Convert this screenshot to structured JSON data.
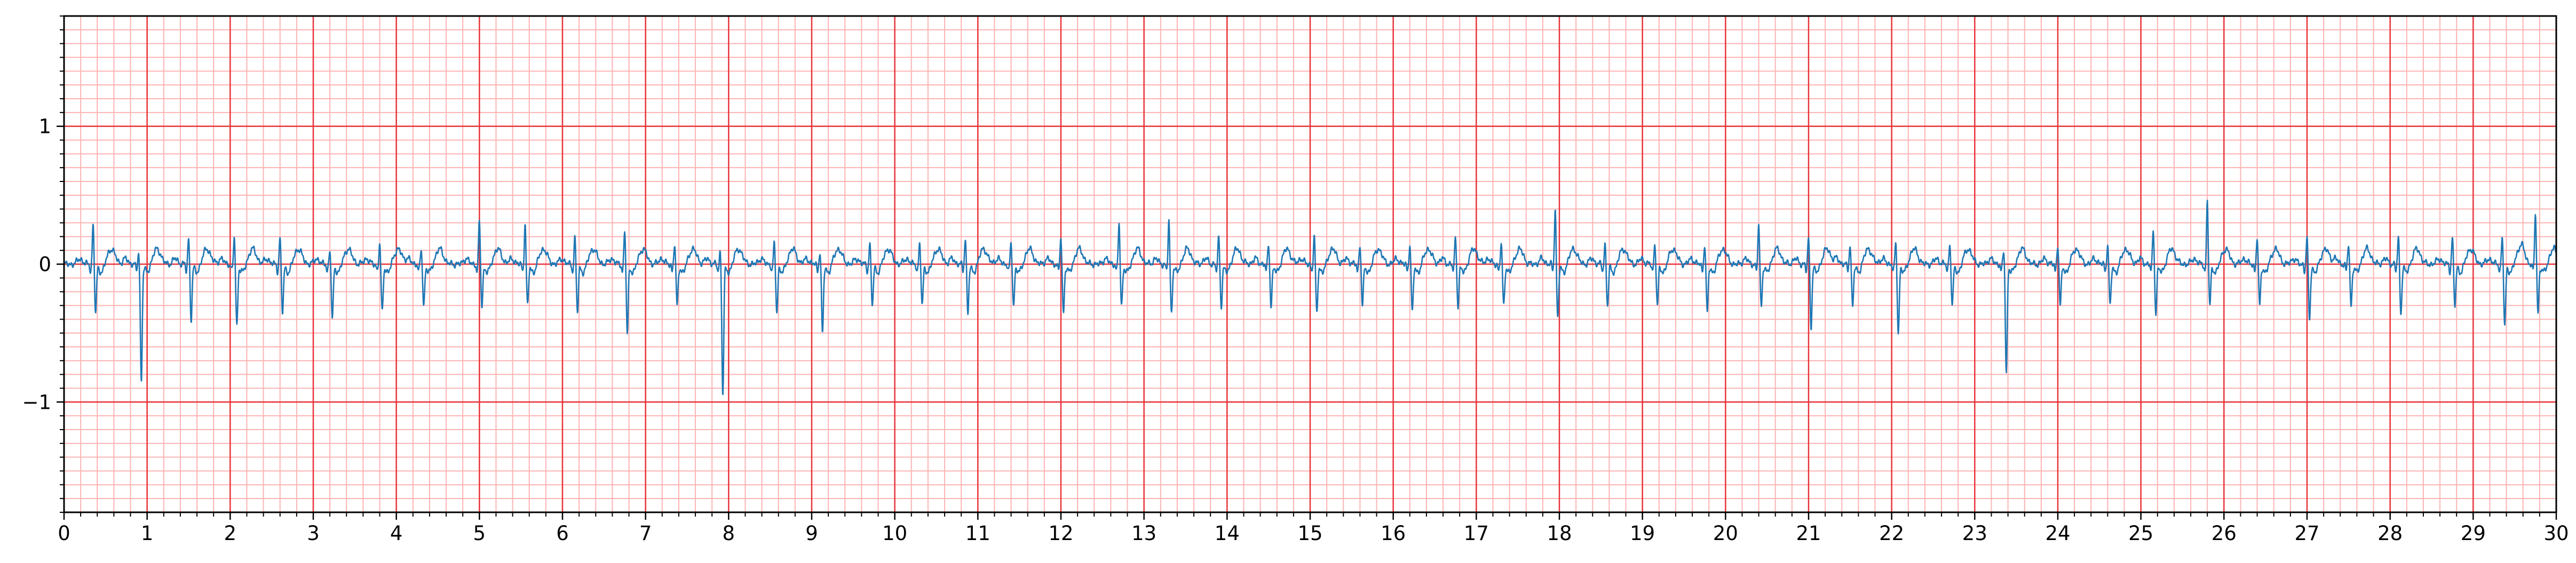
{
  "chart_data": {
    "type": "line",
    "title": "",
    "xlabel": "",
    "ylabel": "",
    "xlim": [
      0,
      30
    ],
    "ylim": [
      -1.8,
      1.8
    ],
    "x_ticks": [
      0,
      1,
      2,
      3,
      4,
      5,
      6,
      7,
      8,
      9,
      10,
      11,
      12,
      13,
      14,
      15,
      16,
      17,
      18,
      19,
      20,
      21,
      22,
      23,
      24,
      25,
      26,
      27,
      28,
      29,
      30
    ],
    "x_tick_labels": [
      "0",
      "1",
      "2",
      "3",
      "4",
      "5",
      "6",
      "7",
      "8",
      "9",
      "10",
      "11",
      "12",
      "13",
      "14",
      "15",
      "16",
      "17",
      "18",
      "19",
      "20",
      "21",
      "22",
      "23",
      "24",
      "25",
      "26",
      "27",
      "28",
      "29",
      "30"
    ],
    "y_ticks": [
      -1,
      0,
      1
    ],
    "y_tick_labels": [
      "−1",
      "0",
      "1"
    ],
    "grid": {
      "major": true,
      "minor": true,
      "x_major_step": 1,
      "x_minor_step": 0.2,
      "y_major_step": 1,
      "y_minor_step": 0.1
    },
    "colors": {
      "line": "#1f77b4",
      "major_grid": "#e8333a",
      "minor_grid": "#ffb3b3",
      "axes": "#000000"
    },
    "series": [
      {
        "name": "",
        "beats": [
          {
            "t": 0.35,
            "r": 0.3,
            "s": -0.35
          },
          {
            "t": 0.9,
            "r": 0.1,
            "s": -0.85
          },
          {
            "t": 1.5,
            "r": 0.2,
            "s": -0.4
          },
          {
            "t": 2.05,
            "r": 0.2,
            "s": -0.45
          },
          {
            "t": 2.6,
            "r": 0.2,
            "s": -0.35
          },
          {
            "t": 3.2,
            "r": 0.1,
            "s": -0.4
          },
          {
            "t": 3.8,
            "r": 0.15,
            "s": -0.35
          },
          {
            "t": 4.3,
            "r": 0.1,
            "s": -0.3
          },
          {
            "t": 5.0,
            "r": 0.32,
            "s": -0.3
          },
          {
            "t": 5.55,
            "r": 0.3,
            "s": -0.3
          },
          {
            "t": 6.15,
            "r": 0.2,
            "s": -0.35
          },
          {
            "t": 6.75,
            "r": 0.25,
            "s": -0.5
          },
          {
            "t": 7.35,
            "r": 0.15,
            "s": -0.3
          },
          {
            "t": 7.9,
            "r": 0.1,
            "s": -0.95
          },
          {
            "t": 8.55,
            "r": 0.15,
            "s": -0.35
          },
          {
            "t": 9.1,
            "r": 0.1,
            "s": -0.5
          },
          {
            "t": 9.7,
            "r": 0.15,
            "s": -0.3
          },
          {
            "t": 10.3,
            "r": 0.15,
            "s": -0.3
          },
          {
            "t": 10.85,
            "r": 0.2,
            "s": -0.35
          },
          {
            "t": 11.4,
            "r": 0.15,
            "s": -0.3
          },
          {
            "t": 12.0,
            "r": 0.2,
            "s": -0.35
          },
          {
            "t": 12.7,
            "r": 0.3,
            "s": -0.3
          },
          {
            "t": 13.3,
            "r": 0.32,
            "s": -0.35
          },
          {
            "t": 13.9,
            "r": 0.2,
            "s": -0.3
          },
          {
            "t": 14.5,
            "r": 0.15,
            "s": -0.3
          },
          {
            "t": 15.05,
            "r": 0.2,
            "s": -0.35
          },
          {
            "t": 15.6,
            "r": 0.15,
            "s": -0.3
          },
          {
            "t": 16.2,
            "r": 0.15,
            "s": -0.35
          },
          {
            "t": 16.75,
            "r": 0.2,
            "s": -0.3
          },
          {
            "t": 17.3,
            "r": 0.15,
            "s": -0.3
          },
          {
            "t": 17.95,
            "r": 0.42,
            "s": -0.38
          },
          {
            "t": 18.55,
            "r": 0.15,
            "s": -0.3
          },
          {
            "t": 19.15,
            "r": 0.15,
            "s": -0.3
          },
          {
            "t": 19.75,
            "r": 0.15,
            "s": -0.35
          },
          {
            "t": 20.4,
            "r": 0.3,
            "s": -0.3
          },
          {
            "t": 21.0,
            "r": 0.2,
            "s": -0.45
          },
          {
            "t": 21.5,
            "r": 0.15,
            "s": -0.3
          },
          {
            "t": 22.05,
            "r": 0.15,
            "s": -0.5
          },
          {
            "t": 22.7,
            "r": 0.15,
            "s": -0.3
          },
          {
            "t": 23.35,
            "r": 0.1,
            "s": -0.78
          },
          {
            "t": 24.0,
            "r": 0.15,
            "s": -0.3
          },
          {
            "t": 24.6,
            "r": 0.15,
            "s": -0.3
          },
          {
            "t": 25.15,
            "r": 0.25,
            "s": -0.35
          },
          {
            "t": 25.8,
            "r": 0.47,
            "s": -0.3
          },
          {
            "t": 26.4,
            "r": 0.2,
            "s": -0.3
          },
          {
            "t": 27.0,
            "r": 0.2,
            "s": -0.4
          },
          {
            "t": 27.5,
            "r": 0.15,
            "s": -0.3
          },
          {
            "t": 28.1,
            "r": 0.2,
            "s": -0.35
          },
          {
            "t": 28.75,
            "r": 0.2,
            "s": -0.3
          },
          {
            "t": 29.35,
            "r": 0.2,
            "s": -0.45
          },
          {
            "t": 29.75,
            "r": 0.38,
            "s": -0.35
          }
        ]
      }
    ]
  }
}
